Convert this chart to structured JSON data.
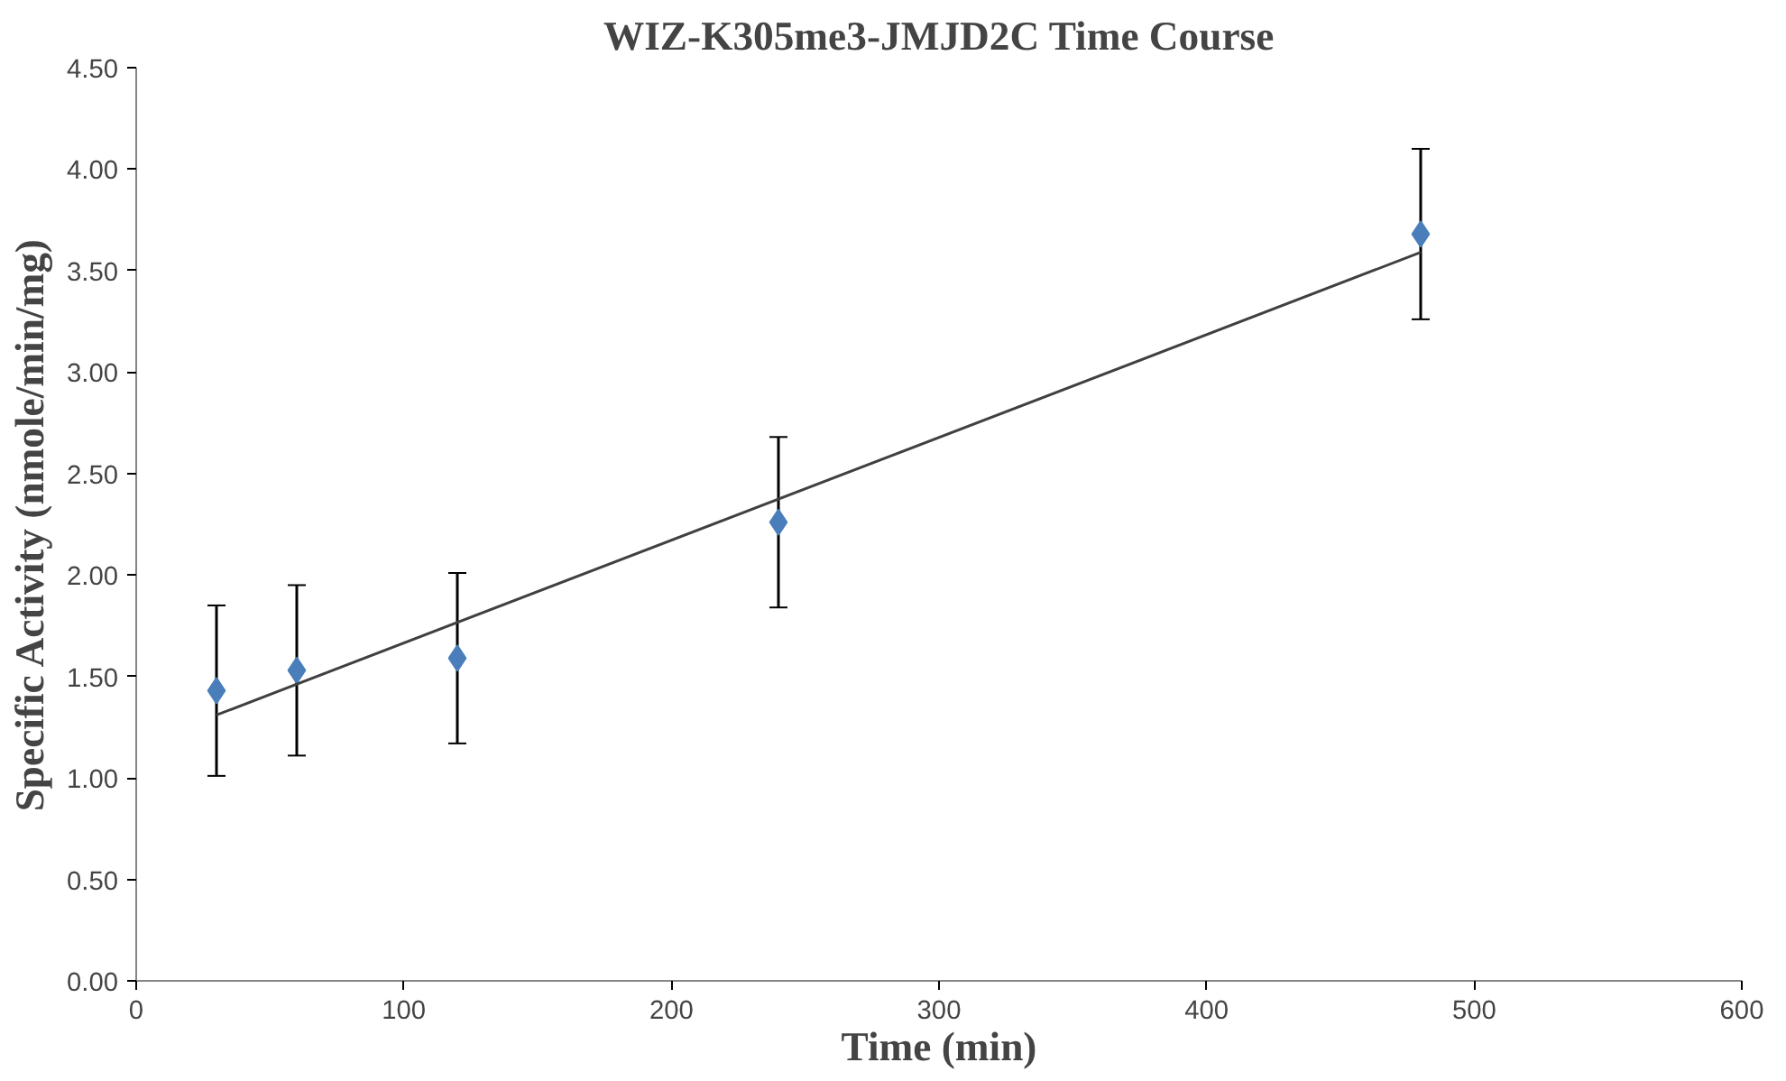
{
  "chart_data": {
    "type": "scatter",
    "title": "WIZ-K305me3-JMJD2C Time Course",
    "xlabel": "Time (min)",
    "ylabel": "Specific Activity (nmole/min/mg)",
    "x": [
      30,
      60,
      120,
      240,
      480
    ],
    "series": [
      {
        "color": "#4a7ebb",
        "values": [
          1.43,
          1.53,
          1.59,
          2.26,
          3.68
        ],
        "errors": [
          0.42,
          0.42,
          0.42,
          0.42,
          0.42
        ],
        "marker": "diamond"
      },
      {
        "type": "line",
        "color": "#404040",
        "x": [
          30,
          480
        ],
        "values": [
          1.31,
          3.59
        ],
        "marker": "none",
        "line_style": "solid"
      }
    ],
    "xlim": [
      0,
      600
    ],
    "xticks": [
      0,
      100,
      200,
      300,
      400,
      500,
      600
    ],
    "ylim": [
      0,
      4.5
    ],
    "yticks": [
      {
        "value": 0,
        "label": "0.00"
      },
      {
        "value": 0.5,
        "label": "0.50"
      },
      {
        "value": 1,
        "label": "1.00"
      },
      {
        "value": 1.5,
        "label": "1.50"
      },
      {
        "value": 2,
        "label": "2.00"
      },
      {
        "value": 2.5,
        "label": "2.50"
      },
      {
        "value": 3,
        "label": "3.00"
      },
      {
        "value": 3.5,
        "label": "3.50"
      },
      {
        "value": 4,
        "label": "4.00"
      },
      {
        "value": 4.5,
        "label": "4.50"
      }
    ],
    "grid": false
  }
}
